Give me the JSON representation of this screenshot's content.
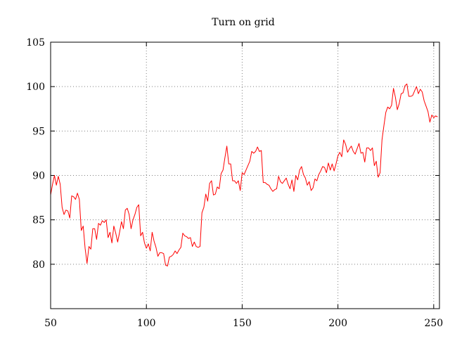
{
  "chart_data": {
    "type": "line",
    "title": "Turn on grid",
    "xlabel": "",
    "ylabel": "",
    "xlim": [
      50,
      253
    ],
    "ylim": [
      75,
      105
    ],
    "xticks": [
      50,
      100,
      150,
      200,
      250
    ],
    "yticks": [
      80,
      85,
      90,
      95,
      100,
      105
    ],
    "xtick_labels": [
      "50",
      "100",
      "150",
      "200",
      "250"
    ],
    "ytick_labels": [
      "80",
      "85",
      "90",
      "95",
      "100",
      "105"
    ],
    "grid": true,
    "legend": "none",
    "series": [
      {
        "color": "#ff0000",
        "x": [
          50,
          51,
          52,
          53,
          54,
          55,
          56,
          57,
          58,
          59,
          60,
          61,
          62,
          63,
          64,
          65,
          66,
          67,
          68,
          69,
          70,
          71,
          72,
          73,
          74,
          75,
          76,
          77,
          78,
          79,
          80,
          81,
          82,
          83,
          84,
          85,
          86,
          87,
          88,
          89,
          90,
          91,
          92,
          93,
          94,
          95,
          96,
          97,
          98,
          99,
          100,
          101,
          102,
          103,
          104,
          105,
          106,
          107,
          108,
          109,
          110,
          111,
          112,
          113,
          114,
          115,
          116,
          117,
          118,
          119,
          120,
          121,
          122,
          123,
          124,
          125,
          126,
          127,
          128,
          129,
          130,
          131,
          132,
          133,
          134,
          135,
          136,
          137,
          138,
          139,
          140,
          141,
          142,
          143,
          144,
          145,
          146,
          147,
          148,
          149,
          150,
          151,
          152,
          153,
          154,
          155,
          156,
          157,
          158,
          159,
          160,
          161,
          162,
          163,
          164,
          165,
          166,
          167,
          168,
          169,
          170,
          171,
          172,
          173,
          174,
          175,
          176,
          177,
          178,
          179,
          180,
          181,
          182,
          183,
          184,
          185,
          186,
          187,
          188,
          189,
          190,
          191,
          192,
          193,
          194,
          195,
          196,
          197,
          198,
          199,
          200,
          201,
          202,
          203,
          204,
          205,
          206,
          207,
          208,
          209,
          210,
          211,
          212,
          213,
          214,
          215,
          216,
          217,
          218,
          219,
          220,
          221,
          222,
          223,
          224,
          225,
          226,
          227,
          228,
          229,
          230,
          231,
          232,
          233,
          234,
          235,
          236,
          237,
          238,
          239,
          240,
          241,
          242,
          243,
          244,
          245,
          246,
          247,
          248,
          249,
          250,
          251,
          252
        ],
        "y": [
          87.8,
          89.0,
          90.0,
          88.9,
          89.9,
          89.0,
          86.4,
          85.6,
          86.1,
          86.0,
          85.2,
          87.7,
          87.6,
          87.3,
          88.0,
          87.3,
          83.8,
          84.3,
          81.8,
          80.1,
          82.0,
          81.7,
          84.0,
          84.0,
          82.8,
          84.6,
          84.4,
          84.9,
          84.7,
          85.0,
          83.0,
          83.6,
          82.4,
          84.3,
          83.5,
          82.5,
          83.6,
          84.8,
          84.0,
          86.1,
          86.3,
          85.6,
          84.0,
          85.0,
          85.6,
          86.4,
          86.7,
          83.2,
          83.6,
          82.4,
          81.8,
          82.3,
          81.5,
          83.6,
          82.6,
          81.9,
          80.9,
          81.3,
          81.3,
          81.2,
          79.9,
          79.8,
          80.8,
          80.9,
          81.1,
          81.5,
          81.2,
          81.6,
          81.9,
          83.5,
          83.2,
          83.1,
          82.9,
          83.0,
          82.0,
          82.5,
          82.0,
          81.9,
          82.0,
          85.8,
          86.4,
          87.9,
          87.1,
          89.1,
          89.4,
          87.8,
          87.9,
          88.7,
          88.5,
          90.2,
          90.6,
          92.0,
          93.3,
          91.3,
          91.3,
          89.4,
          89.4,
          89.1,
          89.4,
          88.3,
          90.3,
          90.1,
          90.6,
          91.1,
          91.6,
          92.7,
          92.5,
          92.7,
          93.2,
          92.7,
          92.8,
          89.2,
          89.2,
          89.0,
          88.9,
          88.5,
          88.2,
          88.4,
          88.5,
          89.9,
          89.3,
          89.1,
          89.4,
          89.7,
          89.0,
          88.5,
          89.5,
          88.2,
          90.0,
          89.5,
          90.6,
          91.0,
          90.1,
          89.7,
          88.9,
          89.3,
          88.3,
          88.6,
          89.6,
          89.4,
          90.1,
          90.5,
          91.0,
          90.9,
          90.3,
          91.4,
          90.6,
          91.3,
          90.5,
          91.3,
          92.2,
          92.6,
          92.1,
          94.0,
          93.5,
          92.6,
          93.0,
          93.3,
          92.7,
          92.4,
          93.0,
          93.6,
          92.5,
          92.6,
          91.5,
          93.1,
          93.1,
          92.8,
          93.1,
          91.1,
          91.6,
          89.8,
          90.3,
          94.0,
          95.6,
          97.1,
          97.7,
          97.5,
          97.9,
          99.8,
          98.8,
          97.4,
          98.1,
          99.2,
          99.3,
          100.1,
          100.3,
          98.9,
          98.9,
          99.0,
          99.5,
          100.0,
          99.2,
          99.7,
          99.4,
          98.4,
          97.8,
          97.2,
          96.0,
          96.8,
          96.5,
          96.7,
          96.6
        ]
      }
    ]
  }
}
